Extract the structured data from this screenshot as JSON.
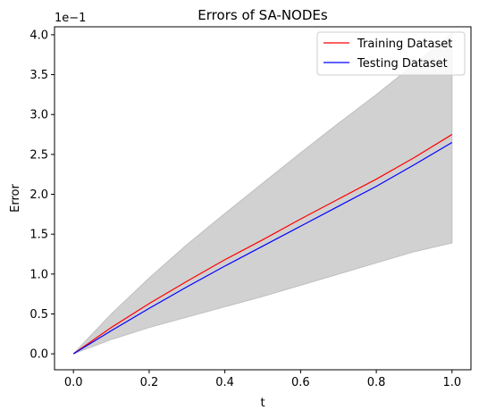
{
  "chart_data": {
    "type": "line",
    "title": "Errors of SA-NODEs",
    "xlabel": "t",
    "ylabel": "Error",
    "y_scale_label": "1e−1",
    "xlim": [
      -0.05,
      1.05
    ],
    "ylim": [
      -0.2,
      4.1
    ],
    "x_ticks": [
      "0.0",
      "0.2",
      "0.4",
      "0.6",
      "0.8",
      "1.0"
    ],
    "y_ticks": [
      "0.0",
      "0.5",
      "1.0",
      "1.5",
      "2.0",
      "2.5",
      "3.0",
      "3.5",
      "4.0"
    ],
    "legend_position": "top-right",
    "grid": false,
    "series": [
      {
        "name": "Training Dataset",
        "color": "#ff0000",
        "x": [
          0.0,
          0.1,
          0.2,
          0.3,
          0.4,
          0.5,
          0.6,
          0.7,
          0.8,
          0.9,
          1.0
        ],
        "values": [
          0.0,
          0.33,
          0.63,
          0.91,
          1.18,
          1.43,
          1.69,
          1.94,
          2.19,
          2.46,
          2.75
        ]
      },
      {
        "name": "Testing Dataset",
        "color": "#0000ff",
        "x": [
          0.0,
          0.1,
          0.2,
          0.3,
          0.4,
          0.5,
          0.6,
          0.7,
          0.8,
          0.9,
          1.0
        ],
        "values": [
          0.0,
          0.29,
          0.57,
          0.84,
          1.1,
          1.35,
          1.6,
          1.85,
          2.1,
          2.37,
          2.65
        ]
      }
    ],
    "band": {
      "color": "#bfbfbf",
      "x": [
        0.0,
        0.1,
        0.2,
        0.3,
        0.4,
        0.5,
        0.6,
        0.7,
        0.8,
        0.9,
        1.0
      ],
      "upper": [
        0.0,
        0.5,
        0.95,
        1.37,
        1.76,
        2.14,
        2.52,
        2.89,
        3.25,
        3.63,
        4.02
      ],
      "lower": [
        0.0,
        0.18,
        0.33,
        0.46,
        0.59,
        0.72,
        0.86,
        1.0,
        1.14,
        1.28,
        1.39
      ]
    }
  }
}
